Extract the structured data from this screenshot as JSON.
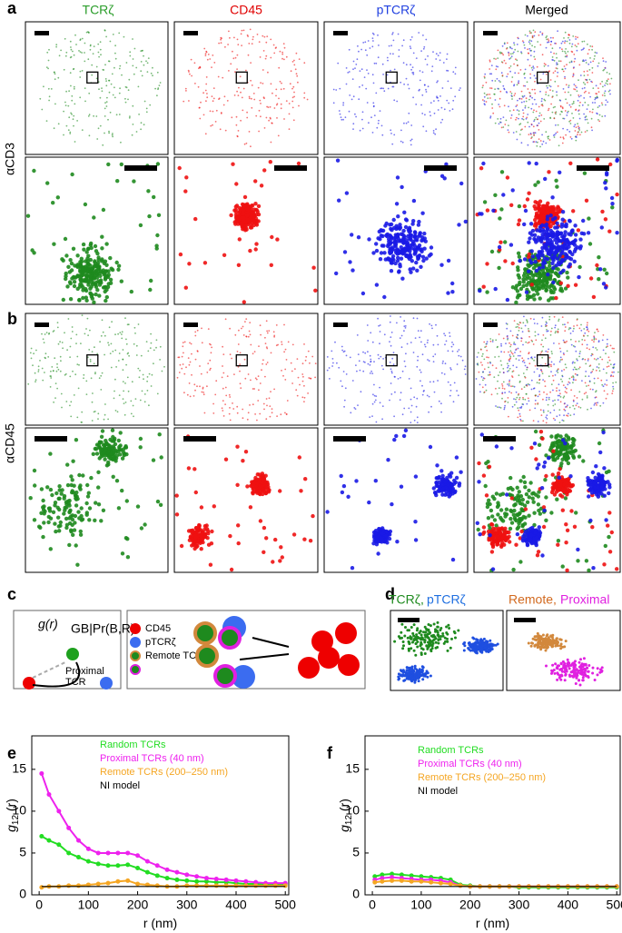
{
  "panel_labels": [
    "a",
    "b",
    "c",
    "d",
    "e",
    "f"
  ],
  "columns": [
    "TCRζ",
    "CD45",
    "pTCRζ",
    "Merged"
  ],
  "row_labels": [
    "αCD3",
    "αCD45"
  ],
  "panel_c": {
    "g": "g(r)",
    "g_sub": "GB|Pr(B,R)",
    "legend": [
      "CD45",
      "pTCRζ",
      "Remote TCR",
      "Proximal TCR"
    ]
  },
  "panel_d": {
    "left": [
      "TCRζ,",
      "pTCRζ"
    ],
    "right": [
      "Remote,",
      "Proximal"
    ]
  },
  "chart_data": [
    {
      "type": "line",
      "xlabel": "r (nm)",
      "ylabel": {
        "g": "g",
        "sub": "12",
        "rest": " (r)"
      },
      "x": [
        5,
        20,
        40,
        60,
        80,
        100,
        120,
        140,
        160,
        180,
        200,
        220,
        240,
        260,
        280,
        300,
        320,
        340,
        360,
        380,
        400,
        420,
        440,
        460,
        480,
        500
      ],
      "xlim": [
        -15,
        507
      ],
      "ylim": [
        0,
        19
      ],
      "xticks": [
        0,
        100,
        200,
        300,
        400,
        500
      ],
      "yticks": [
        0,
        5,
        10,
        15
      ],
      "series": [
        {
          "name": "Random TCRs",
          "color": "#22dd22",
          "values": [
            7,
            6.5,
            6,
            5,
            4.5,
            4,
            3.7,
            3.5,
            3.5,
            3.6,
            3.2,
            2.7,
            2.3,
            2,
            1.8,
            1.7,
            1.6,
            1.6,
            1.5,
            1.5,
            1.4,
            1.3,
            1.3,
            1.3,
            1.3,
            1.3
          ]
        },
        {
          "name": "Proximal TCRs (40 nm)",
          "color": "#ee22ee",
          "values": [
            14.5,
            12,
            10,
            8,
            6.5,
            5.5,
            5,
            5,
            5,
            5,
            4.7,
            4,
            3.5,
            3,
            2.7,
            2.4,
            2.2,
            2,
            1.9,
            1.8,
            1.7,
            1.6,
            1.5,
            1.4,
            1.4,
            1.4
          ]
        },
        {
          "name": "Remote TCRs (200–250 nm)",
          "color": "#f5a623",
          "values": [
            0.9,
            1,
            1,
            1.1,
            1.1,
            1.2,
            1.3,
            1.4,
            1.6,
            1.7,
            1.3,
            1.2,
            1.1,
            1,
            1,
            1.1,
            1.1,
            1.1,
            1.1,
            1.1,
            1.1,
            1.1,
            1.1,
            1.1,
            1.1,
            1.1
          ]
        },
        {
          "name": "NI model",
          "color": "#000000",
          "values": [
            1,
            1,
            1,
            1,
            1,
            1,
            1,
            1,
            1,
            1,
            1,
            1,
            1,
            1,
            1,
            1,
            1,
            1,
            1,
            1,
            1,
            1,
            1,
            1,
            1,
            1
          ]
        }
      ]
    },
    {
      "type": "line",
      "xlabel": "r (nm)",
      "ylabel": {
        "g": "g",
        "sub": "12",
        "rest": " (r)"
      },
      "x": [
        5,
        20,
        40,
        60,
        80,
        100,
        120,
        140,
        160,
        180,
        200,
        220,
        240,
        260,
        280,
        300,
        320,
        340,
        360,
        380,
        400,
        420,
        440,
        460,
        480,
        500
      ],
      "xlim": [
        -15,
        507
      ],
      "ylim": [
        0,
        19
      ],
      "xticks": [
        0,
        100,
        200,
        300,
        400,
        500
      ],
      "yticks": [
        0,
        5,
        10,
        15
      ],
      "series": [
        {
          "name": "Random TCRs",
          "color": "#22dd22",
          "values": [
            2.2,
            2.4,
            2.5,
            2.4,
            2.3,
            2.2,
            2.1,
            2,
            1.8,
            1.2,
            1.1,
            1,
            1,
            1,
            1,
            0.9,
            0.9,
            0.9,
            0.9,
            0.9,
            0.9,
            0.9,
            0.9,
            0.9,
            0.9,
            0.9
          ]
        },
        {
          "name": "Proximal TCRs (40 nm)",
          "color": "#ee22ee",
          "values": [
            1.8,
            2,
            2.1,
            2,
            1.9,
            1.8,
            1.8,
            1.7,
            1.5,
            1.1,
            1,
            1,
            1,
            1,
            1,
            1,
            1,
            1,
            1,
            1,
            1,
            1,
            1,
            1,
            1,
            1
          ]
        },
        {
          "name": "Remote TCRs (200–250 nm)",
          "color": "#f5a623",
          "values": [
            1.5,
            1.6,
            1.7,
            1.7,
            1.6,
            1.6,
            1.5,
            1.4,
            1.3,
            1.1,
            1,
            1,
            1,
            1,
            1,
            1,
            1,
            1,
            1,
            1,
            1,
            1,
            1,
            1,
            1,
            1
          ]
        },
        {
          "name": "NI model",
          "color": "#000000",
          "values": [
            1,
            1,
            1,
            1,
            1,
            1,
            1,
            1,
            1,
            1,
            1,
            1,
            1,
            1,
            1,
            1,
            1,
            1,
            1,
            1,
            1,
            1,
            1,
            1,
            1,
            1
          ]
        }
      ]
    }
  ]
}
